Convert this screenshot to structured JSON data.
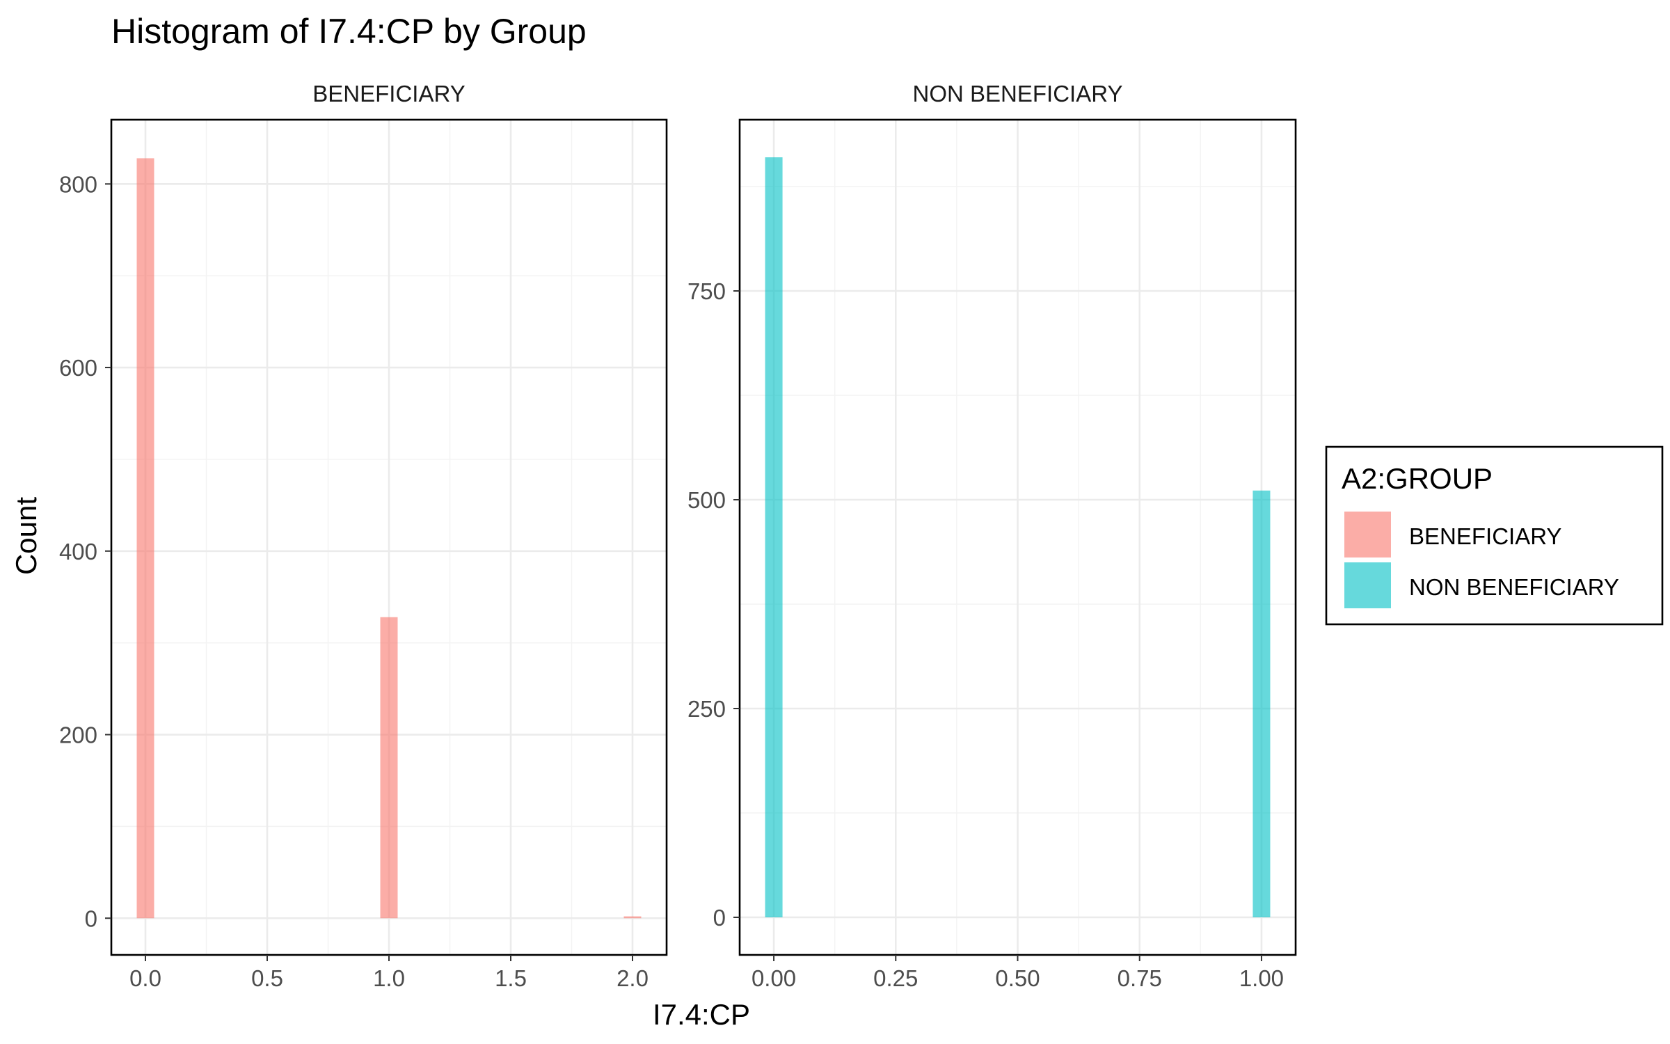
{
  "colors": {
    "BENEFICIARY": "#f8766d",
    "NON BENEFICIARY": "#00bfc4"
  },
  "chart_data": {
    "type": "bar",
    "title": "Histogram of I7.4:CP by Group",
    "xlabel": "I7.4:CP",
    "ylabel": "Count",
    "legend": {
      "title": "A2:GROUP",
      "placement": "right",
      "entries": [
        "BENEFICIARY",
        "NON BENEFICIARY"
      ]
    },
    "grid": true,
    "panels": [
      {
        "strip": "BENEFICIARY",
        "group": "BENEFICIARY",
        "xlim": [
          -0.14,
          2.14
        ],
        "ylim": [
          -40,
          870
        ],
        "x_ticks": [
          0,
          0.5,
          1,
          1.5,
          2
        ],
        "x_tick_labels": [
          "0.0",
          "0.5",
          "1.0",
          "1.5",
          "2.0"
        ],
        "y_ticks": [
          0,
          200,
          400,
          600,
          800
        ],
        "y_tick_labels": [
          "0",
          "200",
          "400",
          "600",
          "800"
        ],
        "bin_width": 0.0714,
        "bars": [
          {
            "x": 0,
            "count": 828
          },
          {
            "x": 1,
            "count": 328
          },
          {
            "x": 2,
            "count": 2
          }
        ]
      },
      {
        "strip": "NON BENEFICIARY",
        "group": "NON BENEFICIARY",
        "xlim": [
          -0.07,
          1.07
        ],
        "ylim": [
          -45,
          955
        ],
        "x_ticks": [
          0,
          0.25,
          0.5,
          0.75,
          1
        ],
        "x_tick_labels": [
          "0.00",
          "0.25",
          "0.50",
          "0.75",
          "1.00"
        ],
        "y_ticks": [
          0,
          250,
          500,
          750
        ],
        "y_tick_labels": [
          "0",
          "250",
          "500",
          "750"
        ],
        "bin_width": 0.0357,
        "bars": [
          {
            "x": 0,
            "count": 910
          },
          {
            "x": 1,
            "count": 511
          }
        ]
      }
    ]
  }
}
